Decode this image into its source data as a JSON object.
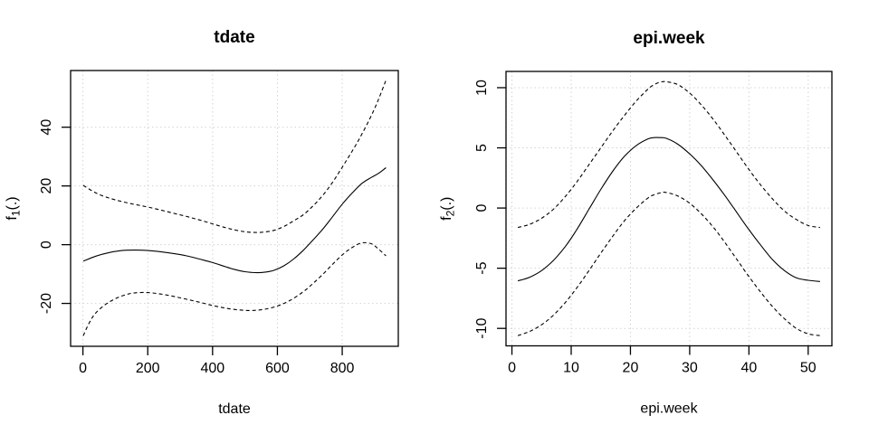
{
  "page": {
    "background": "#ffffff"
  },
  "colors": {
    "line": "#000000",
    "grid": "#d3d3d3",
    "text": "#000000",
    "box": "#000000"
  },
  "chart_data": [
    {
      "type": "line",
      "title": "tdate",
      "xlabel": "tdate",
      "ylabel": {
        "base": "f",
        "sub": "1",
        "rest": "(.)"
      },
      "xlim": [
        -38,
        973
      ],
      "ylim": [
        -34.6,
        59.3
      ],
      "xticks": [
        0,
        200,
        400,
        600,
        800
      ],
      "yticks": [
        -20,
        0,
        20,
        40
      ],
      "grid": "dotted",
      "legend": "none",
      "series": [
        {
          "name": "fit",
          "line": "solid",
          "x": [
            1,
            40,
            80,
            120,
            160,
            200,
            240,
            280,
            320,
            360,
            400,
            440,
            470,
            500,
            530,
            560,
            590,
            620,
            650,
            680,
            710,
            740,
            770,
            800,
            830,
            860,
            890,
            912,
            935
          ],
          "y": [
            -5.6,
            -3.9,
            -2.7,
            -2.0,
            -1.85,
            -2.0,
            -2.4,
            -3.0,
            -3.8,
            -4.9,
            -6.1,
            -7.5,
            -8.5,
            -9.2,
            -9.5,
            -9.4,
            -8.7,
            -7.2,
            -4.9,
            -1.9,
            1.6,
            5.3,
            9.5,
            13.8,
            17.5,
            20.8,
            22.9,
            24.3,
            26.2
          ]
        },
        {
          "name": "upper-ci",
          "line": "dashed",
          "x": [
            1,
            40,
            80,
            120,
            160,
            200,
            240,
            280,
            320,
            360,
            400,
            440,
            470,
            500,
            530,
            560,
            590,
            620,
            650,
            680,
            710,
            740,
            770,
            800,
            830,
            860,
            890,
            912,
            935
          ],
          "y": [
            20.2,
            17.6,
            15.9,
            14.7,
            13.7,
            12.8,
            11.8,
            10.7,
            9.6,
            8.4,
            7.1,
            5.8,
            5.0,
            4.4,
            4.15,
            4.3,
            4.9,
            6.2,
            8.1,
            10.2,
            13.2,
            16.8,
            21.2,
            26.4,
            31.7,
            37.5,
            44.0,
            49.5,
            56.0
          ]
        },
        {
          "name": "lower-ci",
          "line": "dashed",
          "x": [
            1,
            20,
            40,
            70,
            100,
            130,
            160,
            200,
            240,
            280,
            320,
            360,
            400,
            440,
            480,
            520,
            560,
            600,
            640,
            680,
            710,
            740,
            770,
            800,
            830,
            860,
            890,
            912,
            935
          ],
          "y": [
            -31.0,
            -26.5,
            -23.2,
            -20.3,
            -18.4,
            -17.1,
            -16.4,
            -16.3,
            -16.8,
            -17.6,
            -18.6,
            -19.6,
            -20.7,
            -21.6,
            -22.2,
            -22.4,
            -22.0,
            -20.9,
            -18.9,
            -16.0,
            -13.2,
            -10.1,
            -6.7,
            -3.5,
            -1.0,
            0.6,
            0.3,
            -1.5,
            -3.8
          ]
        }
      ]
    },
    {
      "type": "line",
      "title": "epi.week",
      "xlabel": "epi.week",
      "ylabel": {
        "base": "f",
        "sub": "2",
        "rest": "(.)"
      },
      "xlim": [
        -1,
        54
      ],
      "ylim": [
        -11.45,
        11.35
      ],
      "xticks": [
        0,
        10,
        20,
        30,
        40,
        50
      ],
      "yticks": [
        -10,
        -5,
        0,
        5,
        10
      ],
      "grid": "dotted",
      "legend": "none",
      "series": [
        {
          "name": "fit",
          "line": "solid",
          "x": [
            1,
            3,
            5,
            7,
            9,
            11,
            13,
            15,
            17,
            19,
            21,
            23,
            24,
            25,
            26,
            28,
            30,
            32,
            34,
            36,
            38,
            40,
            42,
            44,
            46,
            48,
            50,
            52
          ],
          "y": [
            -6.05,
            -5.75,
            -5.2,
            -4.35,
            -3.2,
            -1.75,
            -0.1,
            1.55,
            3.05,
            4.3,
            5.2,
            5.75,
            5.85,
            5.85,
            5.8,
            5.3,
            4.5,
            3.5,
            2.3,
            1.0,
            -0.4,
            -1.8,
            -3.1,
            -4.3,
            -5.2,
            -5.8,
            -6.0,
            -6.1
          ]
        },
        {
          "name": "upper-ci",
          "line": "dashed",
          "x": [
            1,
            3,
            5,
            7,
            9,
            11,
            13,
            15,
            17,
            19,
            21,
            23,
            24,
            25,
            26,
            28,
            30,
            32,
            34,
            36,
            38,
            40,
            42,
            44,
            46,
            48,
            50,
            52
          ],
          "y": [
            -1.62,
            -1.35,
            -0.85,
            -0.1,
            0.95,
            2.2,
            3.6,
            5.0,
            6.4,
            7.7,
            8.9,
            9.9,
            10.25,
            10.45,
            10.5,
            10.25,
            9.55,
            8.55,
            7.35,
            6.0,
            4.6,
            3.2,
            1.9,
            0.75,
            -0.25,
            -0.95,
            -1.45,
            -1.62
          ]
        },
        {
          "name": "lower-ci",
          "line": "dashed",
          "x": [
            1,
            3,
            5,
            7,
            9,
            11,
            13,
            15,
            17,
            19,
            21,
            23,
            24,
            25,
            26,
            28,
            30,
            32,
            34,
            36,
            38,
            40,
            42,
            44,
            46,
            48,
            50,
            52
          ],
          "y": [
            -10.6,
            -10.25,
            -9.7,
            -8.9,
            -7.85,
            -6.6,
            -5.2,
            -3.75,
            -2.35,
            -1.05,
            0.0,
            0.85,
            1.1,
            1.25,
            1.3,
            1.0,
            0.4,
            -0.5,
            -1.6,
            -2.9,
            -4.3,
            -5.7,
            -7.0,
            -8.2,
            -9.2,
            -10.0,
            -10.45,
            -10.6
          ]
        }
      ]
    }
  ]
}
